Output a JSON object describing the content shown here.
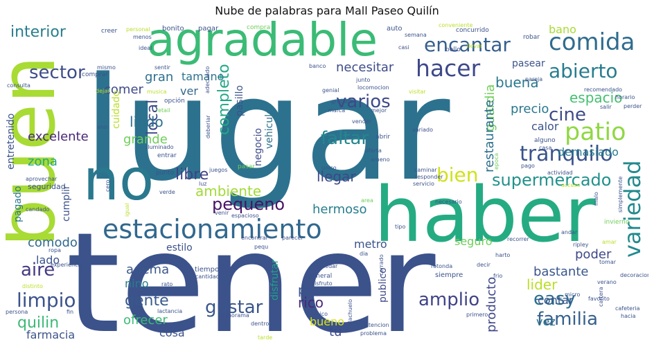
{
  "chart_data": {
    "type": "wordcloud",
    "title": "Nube de palabras para Mall Paseo Quilín",
    "words": [
      {
        "text": "lugar",
        "weight": 100,
        "color": "#2c728e"
      },
      {
        "text": "tener",
        "weight": 98,
        "color": "#3b528b"
      },
      {
        "text": "haber",
        "weight": 70,
        "color": "#25ab82"
      },
      {
        "text": "buen",
        "weight": 55,
        "color": "#a8db34"
      },
      {
        "text": "agradable",
        "weight": 45,
        "color": "#3bbb75"
      },
      {
        "text": "no",
        "weight": 44,
        "color": "#2a788e"
      },
      {
        "text": "estacionamiento",
        "weight": 30,
        "color": "#31688e"
      },
      {
        "text": "comida",
        "weight": 22,
        "color": "#2f6c8e"
      },
      {
        "text": "variedad",
        "weight": 22,
        "color": "#238a8d"
      },
      {
        "text": "hacer",
        "weight": 21,
        "color": "#3e4989"
      },
      {
        "text": "encantar",
        "weight": 19,
        "color": "#355f8d"
      },
      {
        "text": "tranquilo",
        "weight": 19,
        "color": "#3b528b"
      },
      {
        "text": "patio",
        "weight": 19,
        "color": "#90d743"
      },
      {
        "text": "supermercado",
        "weight": 18,
        "color": "#21918c"
      },
      {
        "text": "abierto",
        "weight": 18,
        "color": "#287c8e"
      },
      {
        "text": "sector",
        "weight": 17,
        "color": "#3e4c8a"
      },
      {
        "text": "bien",
        "weight": 17,
        "color": "#d0e11c"
      },
      {
        "text": "aire",
        "weight": 17,
        "color": "#443a83"
      },
      {
        "text": "limpio",
        "weight": 17,
        "color": "#3b528b"
      },
      {
        "text": "gustar",
        "weight": 17,
        "color": "#39568c"
      },
      {
        "text": "amplio",
        "weight": 17,
        "color": "#404387"
      },
      {
        "text": "easy",
        "weight": 16,
        "color": "#2e6f8e"
      },
      {
        "text": "familia",
        "weight": 16,
        "color": "#35608d"
      },
      {
        "text": "faltar",
        "weight": 15,
        "color": "#24868e"
      },
      {
        "text": "pequeno",
        "weight": 15,
        "color": "#471365"
      },
      {
        "text": "ambiente",
        "weight": 15,
        "color": "#a2da37"
      },
      {
        "text": "varios",
        "weight": 14,
        "color": "#3e4989"
      },
      {
        "text": "interior",
        "weight": 14,
        "color": "#287d8e"
      },
      {
        "text": "buena",
        "weight": 14,
        "color": "#2a788e"
      },
      {
        "text": "local",
        "weight": 14,
        "color": "#3f4889"
      },
      {
        "text": "espacio",
        "weight": 13,
        "color": "#44bf70"
      },
      {
        "text": "cine",
        "weight": 13,
        "color": "#3e4a89"
      },
      {
        "text": "gente",
        "weight": 13,
        "color": "#38598c"
      },
      {
        "text": "quilin",
        "weight": 13,
        "color": "#3aba76"
      },
      {
        "text": "completo",
        "weight": 13,
        "color": "#22a785"
      },
      {
        "text": "libre",
        "weight": 13,
        "color": "#424186"
      },
      {
        "text": "entretenido",
        "weight": 10,
        "color": "#3b528b"
      },
      {
        "text": "excelente",
        "weight": 10,
        "color": "#482677"
      },
      {
        "text": "necesitar",
        "weight": 10,
        "color": "#3e4c8a"
      },
      {
        "text": "lindo",
        "weight": 10,
        "color": "#2d708e"
      },
      {
        "text": "guardia",
        "weight": 10,
        "color": "#6ece58"
      },
      {
        "text": "restaurante",
        "weight": 10,
        "color": "#2e6f8e"
      },
      {
        "text": "llegar",
        "weight": 10,
        "color": "#3f4788"
      },
      {
        "text": "hermoso",
        "weight": 10,
        "color": "#277f8e"
      },
      {
        "text": "comodo",
        "weight": 10,
        "color": "#31688e"
      },
      {
        "text": "lider",
        "weight": 10,
        "color": "#bade28"
      },
      {
        "text": "bastante",
        "weight": 10,
        "color": "#39568c"
      },
      {
        "text": "grande",
        "weight": 10,
        "color": "#6ece58"
      },
      {
        "text": "poder",
        "weight": 10,
        "color": "#3f4788"
      },
      {
        "text": "rico",
        "weight": 10,
        "color": "#482878"
      },
      {
        "text": "paseo",
        "weight": 10,
        "color": "#3b528b"
      },
      {
        "text": "producto",
        "weight": 10,
        "color": "#3f4889"
      },
      {
        "text": "comer",
        "weight": 10,
        "color": "#3e4989"
      },
      {
        "text": "zona",
        "weight": 10,
        "color": "#22a884"
      },
      {
        "text": "precio",
        "weight": 10,
        "color": "#2a788e"
      },
      {
        "text": "calor",
        "weight": 10,
        "color": "#3b528b"
      },
      {
        "text": "demasiado",
        "weight": 10,
        "color": "#287c8e"
      },
      {
        "text": "ofrecer",
        "weight": 10,
        "color": "#3bbb75"
      },
      {
        "text": "bueno",
        "weight": 10,
        "color": "#d8e219"
      },
      {
        "text": "tú",
        "weight": 10,
        "color": "#3e4989"
      },
      {
        "text": "contar",
        "weight": 10,
        "color": "#3a548c"
      },
      {
        "text": "vez",
        "weight": 10,
        "color": "#2c738e"
      },
      {
        "text": "cosa",
        "weight": 10,
        "color": "#3b528b"
      },
      {
        "text": "farmacia",
        "weight": 10,
        "color": "#3b528b"
      },
      {
        "text": "adema",
        "weight": 10,
        "color": "#39568c"
      },
      {
        "text": "nino",
        "weight": 10,
        "color": "#287c8e"
      },
      {
        "text": "metro",
        "weight": 10,
        "color": "#3b528b"
      },
      {
        "text": "seguro",
        "weight": 10,
        "color": "#6ece58"
      },
      {
        "text": "lado",
        "weight": 10,
        "color": "#3b528b"
      },
      {
        "text": "gran",
        "weight": 10,
        "color": "#2e6f8e"
      },
      {
        "text": "tamano",
        "weight": 10,
        "color": "#2c738e"
      },
      {
        "text": "ver",
        "weight": 10,
        "color": "#31688e"
      },
      {
        "text": "pasear",
        "weight": 9,
        "color": "#3b528b"
      },
      {
        "text": "bano",
        "weight": 9,
        "color": "#a8db34"
      },
      {
        "text": "pasillo",
        "weight": 9,
        "color": "#3b528b"
      },
      {
        "text": "cuidado",
        "weight": 9,
        "color": "#bade28"
      },
      {
        "text": "negocio",
        "weight": 9,
        "color": "#3e4a89"
      },
      {
        "text": "vehiculo",
        "weight": 9,
        "color": "#2c728e"
      },
      {
        "text": "cumplir",
        "weight": 9,
        "color": "#3b528b"
      },
      {
        "text": "pagado",
        "weight": 9,
        "color": "#2a788e"
      },
      {
        "text": "estilo",
        "weight": 9,
        "color": "#3b528b"
      },
      {
        "text": "disfrutar",
        "weight": 9,
        "color": "#1fa287"
      },
      {
        "text": "publico",
        "weight": 9,
        "color": "#3e4989"
      },
      {
        "text": "seguridad",
        "weight": 7,
        "color": "#3b528b"
      },
      {
        "text": "mismo",
        "weight": 6,
        "color": "#3b528b"
      },
      {
        "text": "comprar",
        "weight": 6,
        "color": "#3b528b"
      },
      {
        "text": "consulta",
        "weight": 6,
        "color": "#3b528b"
      },
      {
        "text": "creer",
        "weight": 6,
        "color": "#3b528b"
      },
      {
        "text": "personal",
        "weight": 6,
        "color": "#bade28"
      },
      {
        "text": "menos",
        "weight": 6,
        "color": "#3b528b"
      },
      {
        "text": "ideal",
        "weight": 6,
        "color": "#3b528b"
      },
      {
        "text": "bonito",
        "weight": 7,
        "color": "#3b528b"
      },
      {
        "text": "pagar",
        "weight": 7,
        "color": "#3b528b"
      },
      {
        "text": "compra",
        "weight": 6,
        "color": "#6ece58"
      },
      {
        "text": "auto",
        "weight": 6,
        "color": "#3b528b"
      },
      {
        "text": "semana",
        "weight": 6,
        "color": "#3b528b"
      },
      {
        "text": "concurrido",
        "weight": 6,
        "color": "#3b528b"
      },
      {
        "text": "casi",
        "weight": 6,
        "color": "#3b528b"
      },
      {
        "text": "bello",
        "weight": 6,
        "color": "#3b528b"
      },
      {
        "text": "llevar",
        "weight": 6,
        "color": "#bade28"
      },
      {
        "text": "robar",
        "weight": 6,
        "color": "#3b528b"
      },
      {
        "text": "sentir",
        "weight": 6,
        "color": "#3b528b"
      },
      {
        "text": "musica",
        "weight": 6,
        "color": "#bade28"
      },
      {
        "text": "opción",
        "weight": 6,
        "color": "#3b528b"
      },
      {
        "text": "dejar",
        "weight": 6,
        "color": "#bade28"
      },
      {
        "text": "adecuado",
        "weight": 6,
        "color": "#3b528b"
      },
      {
        "text": "banco",
        "weight": 6,
        "color": "#3b528b"
      },
      {
        "text": "junto",
        "weight": 6,
        "color": "#3b528b"
      },
      {
        "text": "locomocion",
        "weight": 6,
        "color": "#3b528b"
      },
      {
        "text": "genial",
        "weight": 6,
        "color": "#3b528b"
      },
      {
        "text": "visitar",
        "weight": 6,
        "color": "#bade28"
      },
      {
        "text": "pareja",
        "weight": 6,
        "color": "#3b528b"
      },
      {
        "text": "horario",
        "weight": 6,
        "color": "#3b528b"
      },
      {
        "text": "recomendado",
        "weight": 6,
        "color": "#3b528b"
      },
      {
        "text": "salir",
        "weight": 6,
        "color": "#3b528b"
      },
      {
        "text": "perder",
        "weight": 6,
        "color": "#3b528b"
      },
      {
        "text": "retail",
        "weight": 6,
        "color": "#6ece58"
      },
      {
        "text": "gratuito",
        "weight": 6,
        "color": "#3b528b"
      },
      {
        "text": "marca",
        "weight": 6,
        "color": "#3b528b"
      },
      {
        "text": "mejor",
        "weight": 6,
        "color": "#3b528b"
      },
      {
        "text": "deberiar",
        "weight": 6,
        "color": "#3b528b"
      },
      {
        "text": "vender",
        "weight": 6,
        "color": "#3b528b"
      },
      {
        "text": "ano",
        "weight": 6,
        "color": "#3b528b"
      },
      {
        "text": "iluminado",
        "weight": 6,
        "color": "#3b528b"
      },
      {
        "text": "entrar",
        "weight": 6,
        "color": "#3b528b"
      },
      {
        "text": "abrir",
        "weight": 6,
        "color": "#3b528b"
      },
      {
        "text": "variado",
        "weight": 6,
        "color": "#3b528b"
      },
      {
        "text": "epoca",
        "weight": 6,
        "color": "#6ece58"
      },
      {
        "text": "alguno",
        "weight": 6,
        "color": "#3b528b"
      },
      {
        "text": "casa",
        "weight": 6,
        "color": "#3b528b"
      },
      {
        "text": "oferta",
        "weight": 6,
        "color": "#3b528b"
      },
      {
        "text": "ameno",
        "weight": 6,
        "color": "#3b528b"
      },
      {
        "text": "punto",
        "weight": 6,
        "color": "#3b528b"
      },
      {
        "text": "aprovechar",
        "weight": 6,
        "color": "#3b528b"
      },
      {
        "text": "juegos",
        "weight": 6,
        "color": "#3b528b"
      },
      {
        "text": "pasar",
        "weight": 6,
        "color": "#6ece58"
      },
      {
        "text": "unico",
        "weight": 6,
        "color": "#3b528b"
      },
      {
        "text": "caminar",
        "weight": 6,
        "color": "#3b528b"
      },
      {
        "text": "pago",
        "weight": 6,
        "color": "#3b528b"
      },
      {
        "text": "actividad",
        "weight": 6,
        "color": "#3b528b"
      },
      {
        "text": "responder",
        "weight": 6,
        "color": "#3b528b"
      },
      {
        "text": "servicio",
        "weight": 6,
        "color": "#3b528b"
      },
      {
        "text": "acceso",
        "weight": 6,
        "color": "#bade28"
      },
      {
        "text": "cero",
        "weight": 6,
        "color": "#3b528b"
      },
      {
        "text": "verde",
        "weight": 6,
        "color": "#3b528b"
      },
      {
        "text": "luz",
        "weight": 6,
        "color": "#3b528b"
      },
      {
        "text": "simplemente",
        "weight": 6,
        "color": "#3b528b"
      },
      {
        "text": "malo",
        "weight": 6,
        "color": "#3b528b"
      },
      {
        "text": "candado",
        "weight": 6,
        "color": "#3b528b"
      },
      {
        "text": "igual",
        "weight": 6,
        "color": "#bade28"
      },
      {
        "text": "area",
        "weight": 6,
        "color": "#6ece58"
      },
      {
        "text": "necesario",
        "weight": 6,
        "color": "#3b528b"
      },
      {
        "text": "invierno",
        "weight": 6,
        "color": "#6ece58"
      },
      {
        "text": "venir",
        "weight": 6,
        "color": "#3b528b"
      },
      {
        "text": "espacioso",
        "weight": 6,
        "color": "#3b528b"
      },
      {
        "text": "tipo",
        "weight": 6,
        "color": "#3b528b"
      },
      {
        "text": "andar",
        "weight": 6,
        "color": "#3b528b"
      },
      {
        "text": "ropa",
        "weight": 6,
        "color": "#3b528b"
      },
      {
        "text": "encontrar",
        "weight": 6,
        "color": "#3b528b"
      },
      {
        "text": "pequ",
        "weight": 6,
        "color": "#3b528b"
      },
      {
        "text": "parecer",
        "weight": 6,
        "color": "#3b528b"
      },
      {
        "text": "recorrer",
        "weight": 6,
        "color": "#3b528b"
      },
      {
        "text": "ripley",
        "weight": 6,
        "color": "#3b528b"
      },
      {
        "text": "amar",
        "weight": 6,
        "color": "#bade28"
      },
      {
        "text": "experiencia",
        "weight": 6,
        "color": "#3b528b"
      },
      {
        "text": "gusto",
        "weight": 6,
        "color": "#3b528b"
      },
      {
        "text": "dia",
        "weight": 6,
        "color": "#3b528b"
      },
      {
        "text": "harto",
        "weight": 6,
        "color": "#3b528b"
      },
      {
        "text": "tomar",
        "weight": 6,
        "color": "#3b528b"
      },
      {
        "text": "decoracion",
        "weight": 6,
        "color": "#3b528b"
      },
      {
        "text": "distinto",
        "weight": 6,
        "color": "#bade28"
      },
      {
        "text": "tiempo",
        "weight": 6,
        "color": "#3b528b"
      },
      {
        "text": "cantidad",
        "weight": 6,
        "color": "#3b528b"
      },
      {
        "text": "quedar",
        "weight": 6,
        "color": "#3b528b"
      },
      {
        "text": "cerrado",
        "weight": 6,
        "color": "#3b528b"
      },
      {
        "text": "rotonda",
        "weight": 6,
        "color": "#3b528b"
      },
      {
        "text": "decir",
        "weight": 6,
        "color": "#3b528b"
      },
      {
        "text": "rato",
        "weight": 6,
        "color": "#3b528b"
      },
      {
        "text": "general",
        "weight": 6,
        "color": "#3b528b"
      },
      {
        "text": "disfruto",
        "weight": 6,
        "color": "#3b528b"
      },
      {
        "text": "siempre",
        "weight": 6,
        "color": "#3b528b"
      },
      {
        "text": "frio",
        "weight": 6,
        "color": "#3b528b"
      },
      {
        "text": "verano",
        "weight": 6,
        "color": "#3b528b"
      },
      {
        "text": "persona",
        "weight": 6,
        "color": "#3b528b"
      },
      {
        "text": "fin",
        "weight": 6,
        "color": "#3b528b"
      },
      {
        "text": "lactancia",
        "weight": 6,
        "color": "#3b528b"
      },
      {
        "text": "panorama",
        "weight": 6,
        "color": "#3b528b"
      },
      {
        "text": "chico",
        "weight": 6,
        "color": "#3b528b"
      },
      {
        "text": "riachuelo",
        "weight": 6,
        "color": "#3b528b"
      },
      {
        "text": "primero",
        "weight": 6,
        "color": "#3b528b"
      },
      {
        "text": "micro",
        "weight": 6,
        "color": "#3b528b"
      },
      {
        "text": "cartera",
        "weight": 6,
        "color": "#3b528b"
      },
      {
        "text": "favorito",
        "weight": 6,
        "color": "#3b528b"
      },
      {
        "text": "cafeteria",
        "weight": 6,
        "color": "#3b528b"
      },
      {
        "text": "hacia",
        "weight": 6,
        "color": "#3b528b"
      },
      {
        "text": "dentro",
        "weight": 6,
        "color": "#3b528b"
      },
      {
        "text": "tarde",
        "weight": 6,
        "color": "#bade28"
      },
      {
        "text": "atencion",
        "weight": 6,
        "color": "#3b528b"
      },
      {
        "text": "problema",
        "weight": 6,
        "color": "#3b528b"
      },
      {
        "text": "conveniente",
        "weight": 6,
        "color": "#bade28"
      }
    ]
  }
}
